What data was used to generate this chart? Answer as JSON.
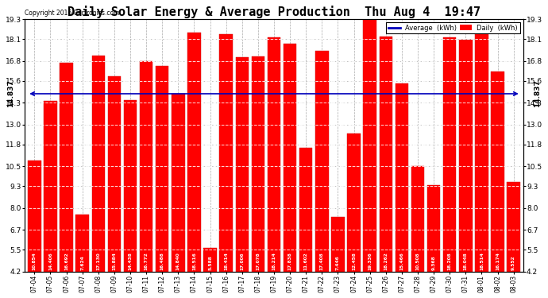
{
  "title": "Daily Solar Energy & Average Production  Thu Aug 4  19:47",
  "copyright": "Copyright 2016 Cartronics.com",
  "average_line": 14.837,
  "average_label": "14.837",
  "categories": [
    "07-04",
    "07-05",
    "07-06",
    "07-07",
    "07-08",
    "07-09",
    "07-10",
    "07-11",
    "07-12",
    "07-13",
    "07-14",
    "07-15",
    "07-16",
    "07-17",
    "07-18",
    "07-19",
    "07-20",
    "07-21",
    "07-22",
    "07-23",
    "07-24",
    "07-25",
    "07-26",
    "07-27",
    "07-28",
    "07-29",
    "07-30",
    "07-31",
    "08-01",
    "08-02",
    "08-03"
  ],
  "values": [
    10.854,
    14.406,
    16.692,
    7.624,
    17.13,
    15.884,
    14.438,
    16.772,
    16.488,
    14.84,
    18.516,
    5.588,
    18.414,
    17.006,
    17.078,
    18.214,
    17.838,
    11.602,
    17.408,
    7.446,
    12.458,
    19.336,
    18.262,
    15.466,
    10.508,
    9.368,
    18.208,
    18.048,
    18.514,
    16.174,
    9.552
  ],
  "bar_color": "#ff0000",
  "bar_edge_color": "#cc0000",
  "value_color": "#ffffff",
  "bg_color": "#ffffff",
  "plot_bg_color": "#ffffff",
  "grid_color": "#aaaaaa",
  "ylim_min": 4.2,
  "ylim_max": 19.3,
  "yticks": [
    4.2,
    5.5,
    6.7,
    8.0,
    9.3,
    10.5,
    11.8,
    13.0,
    14.3,
    15.6,
    16.8,
    18.1,
    19.3
  ],
  "avg_line_color": "#0000bb",
  "title_fontsize": 11,
  "legend_avg_color": "#0000bb",
  "legend_daily_color": "#ff0000",
  "legend_avg_text": "Average  (kWh)",
  "legend_daily_text": "Daily  (kWh)"
}
